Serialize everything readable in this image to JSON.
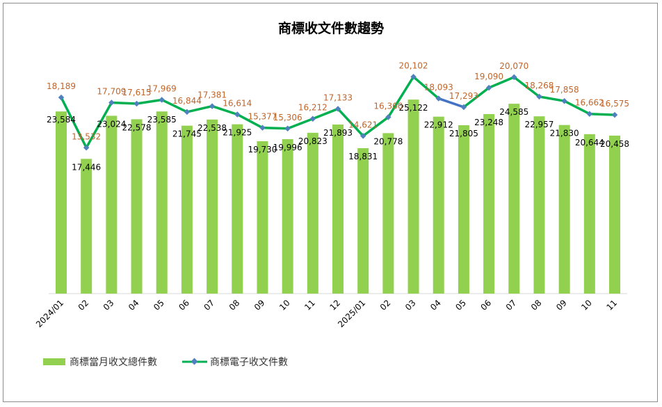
{
  "chart_data": {
    "type": "bar+line",
    "title": "商標收文件數趨勢",
    "categories": [
      "2024/01",
      "02",
      "03",
      "04",
      "05",
      "06",
      "07",
      "08",
      "09",
      "10",
      "11",
      "12",
      "2025/01",
      "02",
      "03",
      "04",
      "05",
      "06",
      "07",
      "08",
      "09",
      "10",
      "11"
    ],
    "series": [
      {
        "name": "商標當月收文總件數",
        "type": "bar",
        "color": "#92d050",
        "label_color": "#000000",
        "values": [
          23584,
          17446,
          23024,
          22578,
          23585,
          21745,
          22538,
          21925,
          19730,
          19996,
          20823,
          21893,
          18831,
          20778,
          25122,
          22912,
          21805,
          23248,
          24585,
          22957,
          21830,
          20644,
          20458
        ],
        "ylim": [
          0,
          30000
        ]
      },
      {
        "name": "商標電子收文件數",
        "type": "line",
        "color": "#00b050",
        "marker_color": "#4f81bd",
        "label_color": "#c0652a",
        "highlight_segment_color": "#4472c4",
        "highlight_segment": [
          "04",
          "05"
        ],
        "values": [
          18189,
          13532,
          17709,
          17615,
          17969,
          16844,
          17381,
          16614,
          15377,
          15306,
          16212,
          17133,
          14621,
          16360,
          20102,
          18093,
          17293,
          19090,
          20070,
          18268,
          17858,
          16662,
          16575
        ],
        "ylim": [
          0,
          22000
        ]
      }
    ],
    "axes_visible": false,
    "grid": false,
    "legend_position": "bottom-left"
  }
}
